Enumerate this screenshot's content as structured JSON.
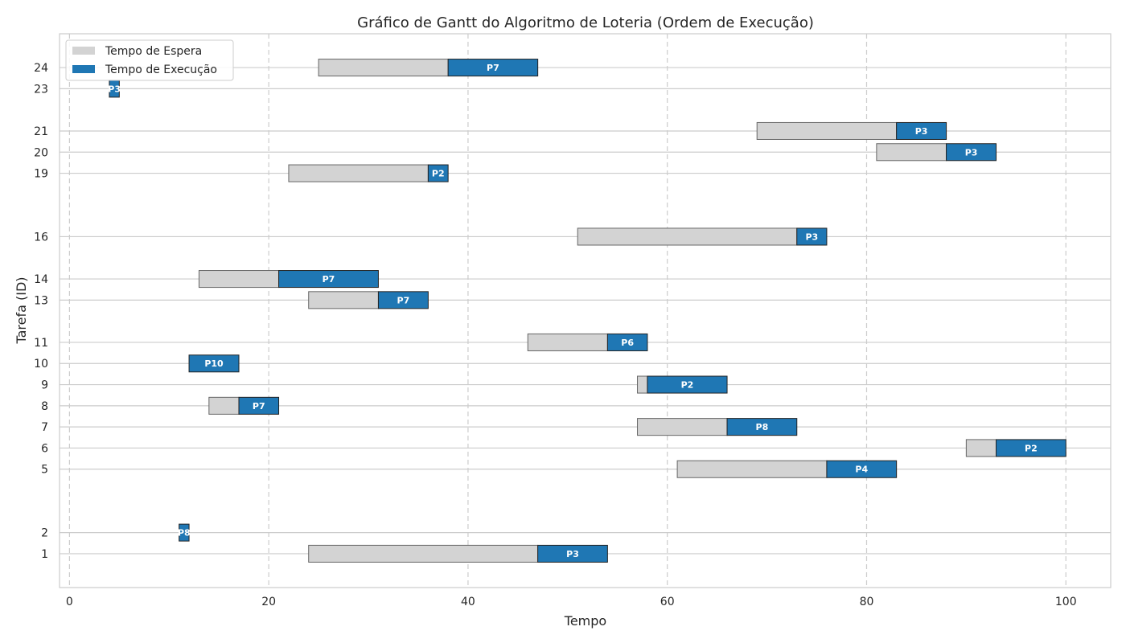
{
  "chart_data": {
    "type": "bar",
    "orientation": "horizontal",
    "stacked": true,
    "title": "Gráfico de Gantt do Algoritmo de Loteria (Ordem de Execução)",
    "xlabel": "Tempo",
    "ylabel": "Tarefa (ID)",
    "xlim": [
      -1,
      104.5
    ],
    "ylim": [
      -0.6,
      25.6
    ],
    "xticks": [
      0,
      20,
      40,
      60,
      80,
      100
    ],
    "yticks": [
      1,
      2,
      5,
      6,
      7,
      8,
      9,
      10,
      11,
      13,
      14,
      16,
      19,
      20,
      21,
      23,
      24
    ],
    "grid": true,
    "legend_position": "top-left",
    "series": [
      {
        "name": "Tempo de Espera",
        "color": "#d3d3d3"
      },
      {
        "name": "Tempo de Execução",
        "color": "#1f77b4"
      }
    ],
    "tasks": [
      {
        "id": 1,
        "arrival": 24,
        "start": 47,
        "end": 54,
        "processor": "P3"
      },
      {
        "id": 2,
        "arrival": 11,
        "start": 11,
        "end": 12,
        "processor": "P8"
      },
      {
        "id": 5,
        "arrival": 61,
        "start": 76,
        "end": 83,
        "processor": "P4"
      },
      {
        "id": 6,
        "arrival": 90,
        "start": 93,
        "end": 100,
        "processor": "P2"
      },
      {
        "id": 7,
        "arrival": 57,
        "start": 66,
        "end": 73,
        "processor": "P8"
      },
      {
        "id": 8,
        "arrival": 14,
        "start": 17,
        "end": 21,
        "processor": "P7"
      },
      {
        "id": 9,
        "arrival": 57,
        "start": 58,
        "end": 66,
        "processor": "P2"
      },
      {
        "id": 10,
        "arrival": 12,
        "start": 12,
        "end": 17,
        "processor": "P10"
      },
      {
        "id": 11,
        "arrival": 46,
        "start": 54,
        "end": 58,
        "processor": "P6"
      },
      {
        "id": 13,
        "arrival": 24,
        "start": 31,
        "end": 36,
        "processor": "P7"
      },
      {
        "id": 14,
        "arrival": 13,
        "start": 21,
        "end": 31,
        "processor": "P7"
      },
      {
        "id": 16,
        "arrival": 51,
        "start": 73,
        "end": 76,
        "processor": "P3"
      },
      {
        "id": 19,
        "arrival": 22,
        "start": 36,
        "end": 38,
        "processor": "P2"
      },
      {
        "id": 20,
        "arrival": 81,
        "start": 88,
        "end": 93,
        "processor": "P3"
      },
      {
        "id": 21,
        "arrival": 69,
        "start": 83,
        "end": 88,
        "processor": "P3"
      },
      {
        "id": 23,
        "arrival": 4,
        "start": 4,
        "end": 5,
        "processor": "P3"
      },
      {
        "id": 24,
        "arrival": 25,
        "start": 38,
        "end": 47,
        "processor": "P7"
      }
    ]
  }
}
